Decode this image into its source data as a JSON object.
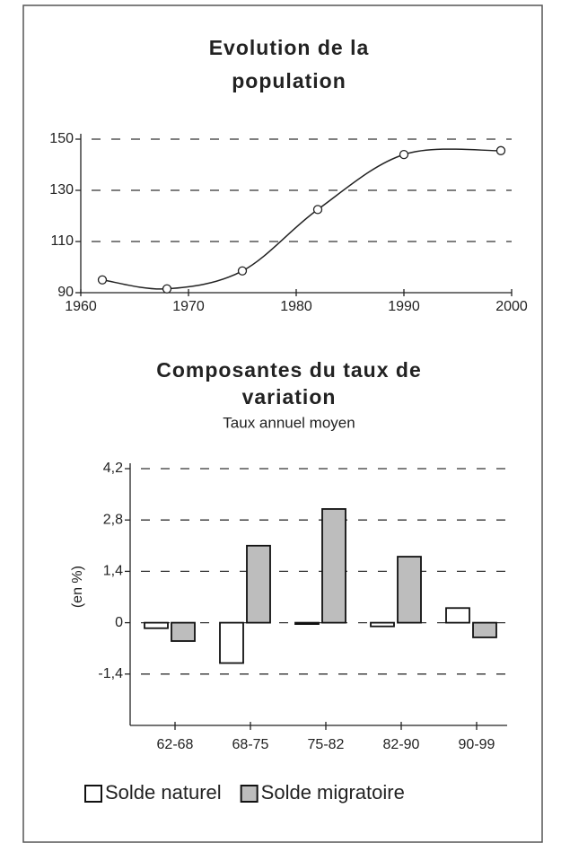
{
  "chart_data": [
    {
      "type": "line",
      "title": [
        "Evolution de la",
        "population"
      ],
      "x": [
        1962,
        1968,
        1975,
        1982,
        1990,
        1999
      ],
      "series": [
        {
          "color": "#222",
          "values": [
            95,
            91.5,
            98.5,
            122.5,
            144,
            145.5
          ]
        }
      ],
      "xlim": [
        1960,
        2000
      ],
      "xticks": [
        1960,
        1970,
        1980,
        1990,
        2000
      ],
      "ylim": [
        90,
        150
      ],
      "yticks": [
        90,
        110,
        130,
        150
      ],
      "grid": true
    },
    {
      "type": "bar",
      "title": [
        "Composantes du taux de",
        "variation"
      ],
      "subtitle": "Taux annuel moyen",
      "ylabel": "(en %)",
      "categories": [
        "62-68",
        "68-75",
        "75-82",
        "82-90",
        "90-99"
      ],
      "series": [
        {
          "name": "Solde naturel",
          "color": "#ffffff",
          "values": [
            -0.15,
            -1.1,
            0,
            -0.1,
            0.4
          ]
        },
        {
          "name": "Solde migratoire",
          "color": "#bdbdbd",
          "values": [
            -0.5,
            2.1,
            3.1,
            1.8,
            -0.4
          ]
        }
      ],
      "ylim": [
        -2.8,
        4.2
      ],
      "yticks": [
        {
          "value": -1.4,
          "label": "-1,4"
        },
        0,
        {
          "value": 1.4,
          "label": "1,4"
        },
        {
          "value": 2.8,
          "label": "2,8"
        },
        {
          "value": 4.2,
          "label": "4,2"
        }
      ],
      "grid": true
    }
  ]
}
